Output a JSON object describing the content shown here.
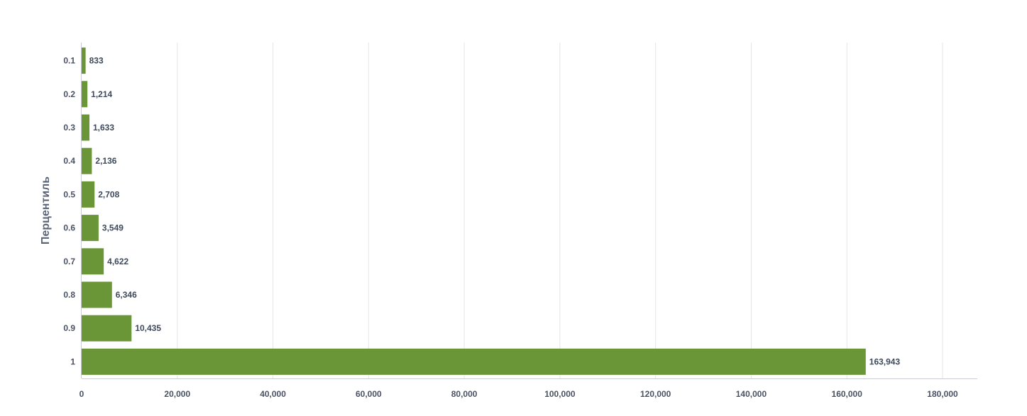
{
  "chart_data": {
    "type": "bar",
    "orientation": "horizontal",
    "categories": [
      "0.1",
      "0.2",
      "0.3",
      "0.4",
      "0.5",
      "0.6",
      "0.7",
      "0.8",
      "0.9",
      "1"
    ],
    "values": [
      833,
      1214,
      1633,
      2136,
      2708,
      3549,
      4622,
      6346,
      10435,
      163943
    ],
    "value_labels": [
      "833",
      "1,214",
      "1,633",
      "2,136",
      "2,708",
      "3,549",
      "4,622",
      "6,346",
      "10,435",
      "163,943"
    ],
    "title": "",
    "xlabel": "",
    "ylabel": "Перцентиль",
    "xlim": [
      0,
      185000
    ],
    "x_ticks": [
      0,
      20000,
      40000,
      60000,
      80000,
      100000,
      120000,
      140000,
      160000,
      180000
    ],
    "x_tick_labels": [
      "0",
      "20,000",
      "40,000",
      "60,000",
      "80,000",
      "100,000",
      "120,000",
      "140,000",
      "160,000",
      "180,000"
    ],
    "grid": "vertical",
    "legend": "none",
    "colors": {
      "bar": "#6a9637",
      "grid": "#e6e6e6",
      "axis": "#c9ccd3"
    }
  }
}
